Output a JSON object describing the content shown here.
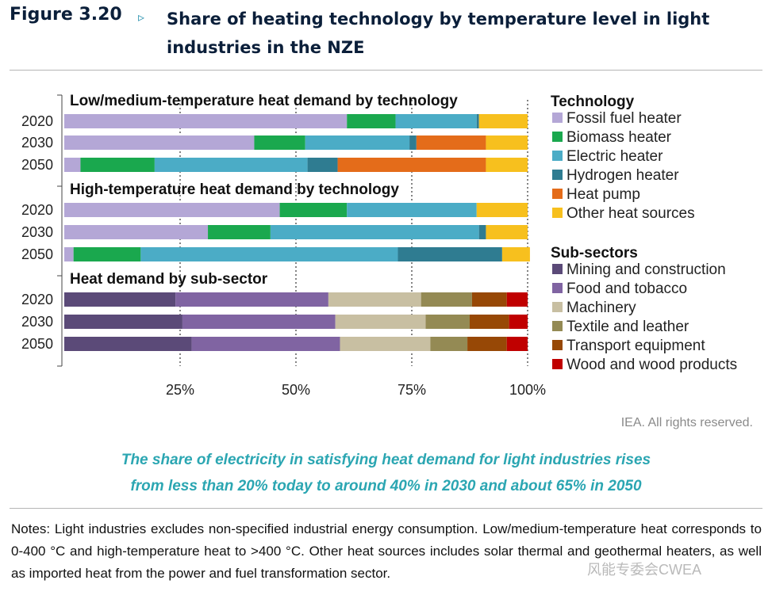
{
  "figure": {
    "label": "Figure 3.20",
    "arrow": "▹",
    "title": "Share of heating technology by temperature level in light industries in the NZE"
  },
  "chart_data": {
    "type": "bar",
    "orientation": "horizontal-stacked",
    "xlim": [
      0,
      100
    ],
    "x_ticks": [
      "25%",
      "50%",
      "75%",
      "100%"
    ],
    "x_tick_values": [
      25,
      50,
      75,
      100
    ],
    "grid": "dotted vertical",
    "legend_position": "right",
    "panels": [
      {
        "title": "Low/medium-temperature heat demand by technology",
        "categories": [
          "2020",
          "2030",
          "2050"
        ],
        "series": [
          {
            "name": "Fossil fuel heater",
            "values": [
              61,
              41,
              3.5
            ]
          },
          {
            "name": "Biomass heater",
            "values": [
              10.5,
              11,
              16
            ]
          },
          {
            "name": "Electric heater",
            "values": [
              17.5,
              22.5,
              33
            ]
          },
          {
            "name": "Hydrogen heater",
            "values": [
              0.5,
              1.5,
              6.5
            ]
          },
          {
            "name": "Heat pump",
            "values": [
              0,
              15,
              32
            ]
          },
          {
            "name": "Other heat sources",
            "values": [
              10.5,
              9,
              9
            ]
          }
        ]
      },
      {
        "title": "High-temperature heat demand by technology",
        "categories": [
          "2020",
          "2030",
          "2050"
        ],
        "series": [
          {
            "name": "Fossil fuel heater",
            "values": [
              46.5,
              31,
              2
            ]
          },
          {
            "name": "Biomass heater",
            "values": [
              14.5,
              13.5,
              14.5
            ]
          },
          {
            "name": "Electric heater",
            "values": [
              28,
              45,
              55.5
            ]
          },
          {
            "name": "Hydrogen heater",
            "values": [
              0,
              1.5,
              22.5
            ]
          },
          {
            "name": "Heat pump",
            "values": [
              0,
              0,
              0
            ]
          },
          {
            "name": "Other heat sources",
            "values": [
              11,
              9,
              6
            ]
          }
        ]
      },
      {
        "title": "Heat demand by sub-sector",
        "categories": [
          "2020",
          "2030",
          "2050"
        ],
        "series": [
          {
            "name": "Mining and construction",
            "values": [
              24,
              25.5,
              27.5
            ]
          },
          {
            "name": "Food and tobacco",
            "values": [
              33,
              33,
              32
            ]
          },
          {
            "name": "Machinery",
            "values": [
              20,
              19.5,
              19.5
            ]
          },
          {
            "name": "Textile and leather",
            "values": [
              11,
              9.5,
              8
            ]
          },
          {
            "name": "Transport equipment",
            "values": [
              7.5,
              8.5,
              8.5
            ]
          },
          {
            "name": "Wood and wood products",
            "values": [
              4.5,
              4,
              4.5
            ]
          }
        ]
      }
    ],
    "legends": [
      {
        "title": "Technology",
        "items": [
          {
            "name": "Fossil fuel heater",
            "color": "#b4a7d6"
          },
          {
            "name": "Biomass heater",
            "color": "#1aa84e"
          },
          {
            "name": "Electric heater",
            "color": "#4bacc6"
          },
          {
            "name": "Hydrogen heater",
            "color": "#2f7c91"
          },
          {
            "name": "Heat pump",
            "color": "#e46c1a"
          },
          {
            "name": "Other heat sources",
            "color": "#f7c01e"
          }
        ]
      },
      {
        "title": "Sub-sectors",
        "items": [
          {
            "name": "Mining and construction",
            "color": "#5b4a78"
          },
          {
            "name": "Food and tobacco",
            "color": "#8064a2"
          },
          {
            "name": "Machinery",
            "color": "#c8bfa2"
          },
          {
            "name": "Textile and leather",
            "color": "#948a54"
          },
          {
            "name": "Transport equipment",
            "color": "#974806"
          },
          {
            "name": "Wood and wood products",
            "color": "#c00000"
          }
        ]
      }
    ]
  },
  "rights": "IEA. All rights reserved.",
  "caption": {
    "line1": "The share of electricity in satisfying heat demand for light industries rises",
    "line2": "from less than 20% today to around 40% in 2030 and about 65% in 2050"
  },
  "notes": "Notes: Light industries excludes non-specified industrial energy consumption. Low/medium-temperature heat corresponds to 0-400 °C and high-temperature heat to >400 °C. Other heat sources includes solar thermal and geothermal heaters, as well as imported heat from the power and fuel transformation sector.",
  "watermark": "风能专委会CWEA"
}
